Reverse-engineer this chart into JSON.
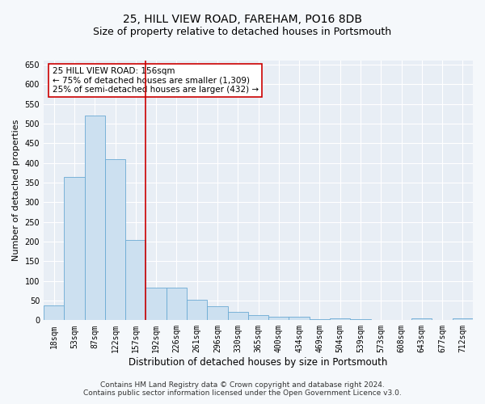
{
  "title": "25, HILL VIEW ROAD, FAREHAM, PO16 8DB",
  "subtitle": "Size of property relative to detached houses in Portsmouth",
  "xlabel": "Distribution of detached houses by size in Portsmouth",
  "ylabel": "Number of detached properties",
  "bar_labels": [
    "18sqm",
    "53sqm",
    "87sqm",
    "122sqm",
    "157sqm",
    "192sqm",
    "226sqm",
    "261sqm",
    "296sqm",
    "330sqm",
    "365sqm",
    "400sqm",
    "434sqm",
    "469sqm",
    "504sqm",
    "539sqm",
    "573sqm",
    "608sqm",
    "643sqm",
    "677sqm",
    "712sqm"
  ],
  "bar_values": [
    37,
    365,
    520,
    410,
    205,
    83,
    83,
    52,
    35,
    22,
    12,
    8,
    8,
    2,
    5,
    2,
    0,
    0,
    4,
    0,
    4
  ],
  "bar_color": "#cce0f0",
  "bar_edge_color": "#6aaad4",
  "vline_color": "#cc0000",
  "annotation_line1": "25 HILL VIEW ROAD: 156sqm",
  "annotation_line2": "← 75% of detached houses are smaller (1,309)",
  "annotation_line3": "25% of semi-detached houses are larger (432) →",
  "annotation_box_color": "#ffffff",
  "annotation_box_edge": "#cc0000",
  "ylim": [
    0,
    660
  ],
  "yticks": [
    0,
    50,
    100,
    150,
    200,
    250,
    300,
    350,
    400,
    450,
    500,
    550,
    600,
    650
  ],
  "footer_line1": "Contains HM Land Registry data © Crown copyright and database right 2024.",
  "footer_line2": "Contains public sector information licensed under the Open Government Licence v3.0.",
  "fig_bg_color": "#f5f8fb",
  "plot_bg_color": "#e8eef5",
  "grid_color": "#ffffff",
  "title_fontsize": 10,
  "subtitle_fontsize": 9,
  "xlabel_fontsize": 8.5,
  "ylabel_fontsize": 8,
  "tick_fontsize": 7,
  "annotation_fontsize": 7.5,
  "footer_fontsize": 6.5,
  "vline_bar_index": 4
}
